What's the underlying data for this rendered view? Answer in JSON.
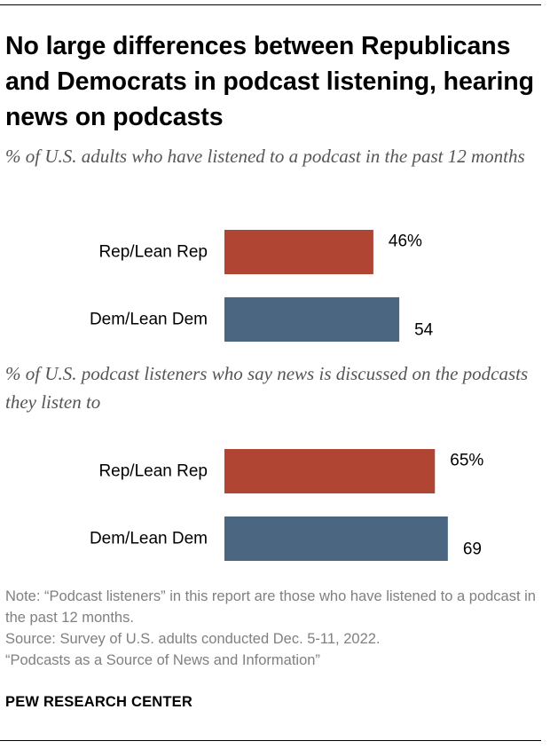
{
  "title": "No large differences between Republicans and Democrats in podcast listening, hearing news on podcasts",
  "subtitles": [
    "% of U.S. adults who have listened to a podcast in the past 12 months",
    "% of U.S. podcast listeners who say news is discussed on the podcasts they listen to"
  ],
  "colors": {
    "rep": "#b14533",
    "dem": "#4a6680"
  },
  "chart_data": [
    {
      "type": "bar",
      "orientation": "horizontal",
      "title": "% of U.S. adults who have listened to a podcast in the past 12 months",
      "categories": [
        "Rep/Lean Rep",
        "Dem/Lean Dem"
      ],
      "values": [
        46,
        54
      ],
      "value_labels": [
        "46%",
        "54"
      ],
      "colors": [
        "#b14533",
        "#4a6680"
      ],
      "xlim": [
        0,
        100
      ],
      "grid": false,
      "legend": "none"
    },
    {
      "type": "bar",
      "orientation": "horizontal",
      "title": "% of U.S. podcast listeners who say news is discussed on the podcasts they listen to",
      "categories": [
        "Rep/Lean Rep",
        "Dem/Lean Dem"
      ],
      "values": [
        65,
        69
      ],
      "value_labels": [
        "65%",
        "69"
      ],
      "colors": [
        "#b14533",
        "#4a6680"
      ],
      "xlim": [
        0,
        100
      ],
      "grid": false,
      "legend": "none"
    }
  ],
  "notes": {
    "note": "Note: “Podcast listeners” in this report are those who have listened to a podcast in the past 12 months.",
    "source": "Source: Survey of U.S. adults conducted Dec. 5-11, 2022.",
    "report": "“Podcasts as a Source of News and Information”"
  },
  "brand": "PEW RESEARCH CENTER"
}
